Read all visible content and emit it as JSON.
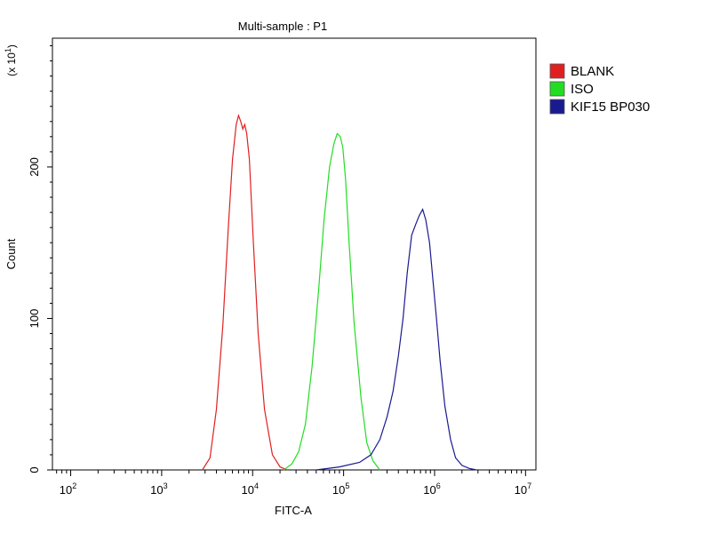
{
  "chart_data": {
    "type": "line",
    "title": "Multi-sample : P1",
    "xlabel": "FITC-A",
    "ylabel": "Count",
    "y_multiplier_label": "(x 10",
    "y_multiplier_exp": "1",
    "y_multiplier_close": ")",
    "x_scale": "log",
    "xlim": [
      63,
      13000000
    ],
    "ylim": [
      0,
      285
    ],
    "x_ticks": [
      {
        "value": 100,
        "base": "10",
        "exp": "2"
      },
      {
        "value": 1000,
        "base": "10",
        "exp": "3"
      },
      {
        "value": 10000,
        "base": "10",
        "exp": "4"
      },
      {
        "value": 100000,
        "base": "10",
        "exp": "5"
      },
      {
        "value": 1000000,
        "base": "10",
        "exp": "6"
      },
      {
        "value": 10000000,
        "base": "10",
        "exp": "7"
      }
    ],
    "y_ticks": [
      {
        "value": 0,
        "label": "0"
      },
      {
        "value": 100,
        "label": "100"
      },
      {
        "value": 200,
        "label": "200"
      }
    ],
    "legend_position": "right",
    "grid": false,
    "series": [
      {
        "name": "BLANK",
        "color": "#e02020",
        "x": [
          2800,
          3400,
          4000,
          4700,
          5400,
          6000,
          6600,
          7000,
          7400,
          7800,
          8200,
          8600,
          9200,
          10200,
          11500,
          13500,
          16500,
          20000,
          24000
        ],
        "y": [
          0,
          8,
          40,
          95,
          160,
          205,
          228,
          234,
          230,
          225,
          228,
          222,
          205,
          150,
          90,
          40,
          10,
          2,
          0
        ]
      },
      {
        "name": "ISO",
        "color": "#22dd22",
        "x": [
          22000,
          27000,
          32000,
          38000,
          45000,
          53000,
          61000,
          70000,
          78000,
          85000,
          92000,
          98000,
          105000,
          115000,
          130000,
          155000,
          180000,
          210000,
          250000
        ],
        "y": [
          0,
          4,
          12,
          30,
          68,
          118,
          165,
          200,
          215,
          222,
          220,
          213,
          192,
          150,
          98,
          48,
          18,
          6,
          0
        ]
      },
      {
        "name": "KIF15 BP030",
        "color": "#1a1a90",
        "x": [
          50000,
          90000,
          150000,
          200000,
          250000,
          300000,
          350000,
          400000,
          450000,
          500000,
          560000,
          620000,
          680000,
          740000,
          800000,
          880000,
          950000,
          1050000,
          1150000,
          1300000,
          1500000,
          1700000,
          2000000,
          2400000,
          2900000
        ],
        "y": [
          0,
          2,
          5,
          10,
          20,
          35,
          52,
          75,
          100,
          130,
          155,
          162,
          168,
          172,
          165,
          150,
          128,
          100,
          72,
          42,
          20,
          8,
          3,
          1,
          0
        ]
      }
    ]
  }
}
